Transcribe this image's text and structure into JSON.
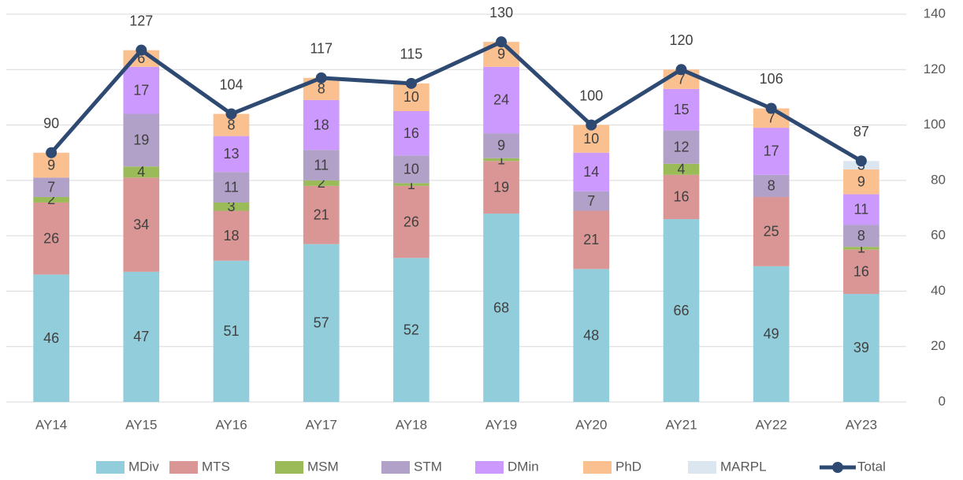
{
  "chart_data": {
    "type": "bar",
    "stacked": true,
    "categories": [
      "AY14",
      "AY15",
      "AY16",
      "AY17",
      "AY18",
      "AY19",
      "AY20",
      "AY21",
      "AY22",
      "AY23"
    ],
    "series": [
      {
        "name": "MDiv",
        "color": "#92cddc",
        "values": [
          46,
          47,
          51,
          57,
          52,
          68,
          48,
          66,
          49,
          39
        ]
      },
      {
        "name": "MTS",
        "color": "#da9694",
        "values": [
          26,
          34,
          18,
          21,
          26,
          19,
          21,
          16,
          25,
          16
        ]
      },
      {
        "name": "MSM",
        "color": "#9bbb59",
        "values": [
          2,
          4,
          3,
          2,
          1,
          1,
          0,
          4,
          0,
          1
        ]
      },
      {
        "name": "STM",
        "color": "#b1a0c7",
        "values": [
          7,
          19,
          11,
          11,
          10,
          9,
          7,
          12,
          8,
          8
        ]
      },
      {
        "name": "DMin",
        "color": "#cc99ff",
        "values": [
          0,
          17,
          13,
          18,
          16,
          24,
          14,
          15,
          17,
          11
        ]
      },
      {
        "name": "PhD",
        "color": "#fac090",
        "values": [
          9,
          6,
          8,
          8,
          10,
          9,
          10,
          7,
          7,
          9
        ]
      },
      {
        "name": "MARPL",
        "color": "#dce6f1",
        "values": [
          0,
          0,
          0,
          0,
          0,
          0,
          0,
          0,
          0,
          3
        ]
      },
      {
        "name": "Total",
        "type": "line",
        "color": "#2e4a72",
        "values": [
          90,
          127,
          104,
          117,
          115,
          130,
          100,
          120,
          106,
          87
        ]
      }
    ],
    "ylim": [
      0,
      140
    ],
    "yticks": [
      0,
      20,
      40,
      60,
      80,
      100,
      120,
      140
    ],
    "grid": true,
    "y_axis_side": "right",
    "legend": "bottom"
  }
}
